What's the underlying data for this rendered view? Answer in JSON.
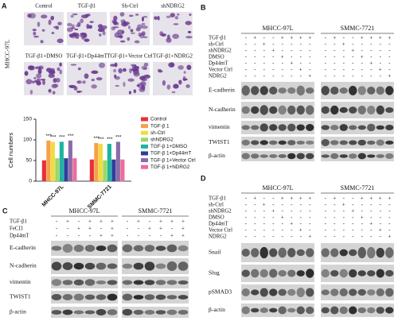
{
  "panel_a": {
    "label": "A",
    "row_label": "MHCC-97L",
    "images": [
      "Control",
      "TGF-β1",
      "Sh-Ctrl",
      "shNDRG2",
      "TGF-β1+DMSO",
      "TGF-β1+Dp44mT",
      "TGF-β1+Vector Ctrl",
      "TGF-β1+NDRG2"
    ]
  },
  "chart_data": {
    "type": "bar",
    "ylabel": "Cell numbers",
    "categories": [
      "MHCC-97L",
      "SMMC-7721"
    ],
    "series": [
      {
        "name": "Control",
        "color": "#e8303a",
        "values": [
          50,
          52
        ]
      },
      {
        "name": "TGF-β 1",
        "color": "#f5a04a",
        "values": [
          98,
          92
        ]
      },
      {
        "name": "sh-Ctrl",
        "color": "#f2dc3c",
        "values": [
          95,
          90
        ]
      },
      {
        "name": "shNDRG2",
        "color": "#9cd66a",
        "values": [
          55,
          50
        ]
      },
      {
        "name": "TGF-β 1+DMSO",
        "color": "#1bb5a0",
        "values": [
          95,
          90
        ]
      },
      {
        "name": "TGF-β 1+Dp44mT",
        "color": "#2c3e9a",
        "values": [
          55,
          52
        ]
      },
      {
        "name": "TGF-β 1+Vector Ctrl",
        "color": "#8a6ca8",
        "values": [
          98,
          95
        ]
      },
      {
        "name": "TGF-β 1+NDRG2",
        "color": "#f06a9a",
        "values": [
          55,
          52
        ]
      }
    ],
    "ylim": [
      0,
      150
    ],
    "yticks": [
      0,
      50,
      100,
      150
    ],
    "annotations": [
      {
        "text": "***",
        "category": 0,
        "series": 1
      },
      {
        "text": "***",
        "category": 0,
        "series": 2
      },
      {
        "text": "***",
        "category": 0,
        "series": 4
      },
      {
        "text": "***",
        "category": 0,
        "series": 6
      },
      {
        "text": "***",
        "category": 1,
        "series": 1
      },
      {
        "text": "***",
        "category": 1,
        "series": 2
      },
      {
        "text": "***",
        "category": 1,
        "series": 4
      },
      {
        "text": "***",
        "category": 1,
        "series": 6
      }
    ]
  },
  "panel_b": {
    "label": "B",
    "cell_lines": [
      "MHCC-97L",
      "SMMC-7721"
    ],
    "conditions": [
      {
        "name": "TGF-β1",
        "signs": [
          "-",
          "+",
          "-",
          "-",
          "+",
          "+",
          "+",
          "+",
          "-",
          "+",
          "-",
          "-",
          "+",
          "+",
          "+",
          "+"
        ]
      },
      {
        "name": "sh-Ctrl",
        "signs": [
          "-",
          "-",
          "+",
          "-",
          "-",
          "-",
          "-",
          "-",
          "-",
          "-",
          "+",
          "-",
          "-",
          "-",
          "-",
          "-"
        ]
      },
      {
        "name": "shNDRG2",
        "signs": [
          "-",
          "-",
          "-",
          "+",
          "-",
          "-",
          "-",
          "-",
          "-",
          "-",
          "-",
          "+",
          "-",
          "-",
          "-",
          "-"
        ]
      },
      {
        "name": "DMSO",
        "signs": [
          "-",
          "-",
          "-",
          "-",
          "+",
          "-",
          "-",
          "-",
          "-",
          "-",
          "-",
          "-",
          "+",
          "-",
          "-",
          "-"
        ]
      },
      {
        "name": "Dp44mT",
        "signs": [
          "-",
          "-",
          "-",
          "-",
          "-",
          "+",
          "-",
          "-",
          "-",
          "-",
          "-",
          "-",
          "-",
          "+",
          "-",
          "-"
        ]
      },
      {
        "name": "Vector Ctrl",
        "signs": [
          "-",
          "-",
          "-",
          "-",
          "-",
          "-",
          "+",
          "-",
          "-",
          "-",
          "-",
          "-",
          "-",
          "-",
          "+",
          "-"
        ]
      },
      {
        "name": "NDRG2",
        "signs": [
          "-",
          "-",
          "-",
          "-",
          "-",
          "-",
          "-",
          "+",
          "-",
          "-",
          "-",
          "-",
          "-",
          "-",
          "-",
          "+"
        ]
      }
    ],
    "blots": [
      "E-cadherin",
      "N-cadherin",
      "vimentin",
      "TWIST1",
      "β-actin"
    ]
  },
  "panel_c": {
    "label": "C",
    "cell_lines": [
      "MHCC-97L",
      "SMMC-7721"
    ],
    "conditions": [
      {
        "name": "TGF-β1",
        "signs": [
          "-",
          "+",
          "-",
          "+",
          "+",
          "+",
          "-",
          "+",
          "-",
          "+",
          "+",
          "+"
        ]
      },
      {
        "name": "FeCl3",
        "signs": [
          "-",
          "-",
          "+",
          "+",
          "-",
          "+",
          "-",
          "-",
          "+",
          "+",
          "-",
          "+"
        ]
      },
      {
        "name": "Dp44mT",
        "signs": [
          "-",
          "-",
          "-",
          "-",
          "+",
          "+",
          "-",
          "-",
          "-",
          "-",
          "+",
          "+"
        ]
      }
    ],
    "blots": [
      "E-cadherin",
      "N-cadherin",
      "vimentin",
      "TWIST1",
      "β-actin"
    ]
  },
  "panel_d": {
    "label": "D",
    "cell_lines": [
      "MHCC-97L",
      "SMMC-7721"
    ],
    "conditions": [
      {
        "name": "TGF-β1",
        "signs": [
          "-",
          "+",
          "-",
          "-",
          "+",
          "+",
          "+",
          "+",
          "-",
          "+",
          "-",
          "-",
          "+",
          "+",
          "+",
          "+"
        ]
      },
      {
        "name": "sh-Ctrl",
        "signs": [
          "-",
          "-",
          "+",
          "-",
          "-",
          "-",
          "-",
          "-",
          "-",
          "-",
          "+",
          "-",
          "-",
          "-",
          "-",
          "-"
        ]
      },
      {
        "name": "shNDRG2",
        "signs": [
          "-",
          "-",
          "-",
          "+",
          "-",
          "-",
          "-",
          "-",
          "-",
          "-",
          "-",
          "+",
          "-",
          "-",
          "-",
          "-"
        ]
      },
      {
        "name": "DMSO",
        "signs": [
          "-",
          "-",
          "-",
          "-",
          "+",
          "-",
          "-",
          "-",
          "-",
          "-",
          "-",
          "-",
          "+",
          "-",
          "-",
          "-"
        ]
      },
      {
        "name": "Dp44mT",
        "signs": [
          "-",
          "-",
          "-",
          "-",
          "-",
          "+",
          "-",
          "-",
          "-",
          "-",
          "-",
          "-",
          "-",
          "+",
          "-",
          "-"
        ]
      },
      {
        "name": "Vector Ctrl",
        "signs": [
          "-",
          "-",
          "-",
          "-",
          "-",
          "-",
          "+",
          "-",
          "-",
          "-",
          "-",
          "-",
          "-",
          "-",
          "+",
          "-"
        ]
      },
      {
        "name": "NDRG2",
        "signs": [
          "-",
          "-",
          "-",
          "-",
          "-",
          "-",
          "-",
          "+",
          "-",
          "-",
          "-",
          "-",
          "-",
          "-",
          "-",
          "+"
        ]
      }
    ],
    "blots": [
      "Snail",
      "Slug",
      "pSMAD3",
      "β-actin"
    ]
  }
}
